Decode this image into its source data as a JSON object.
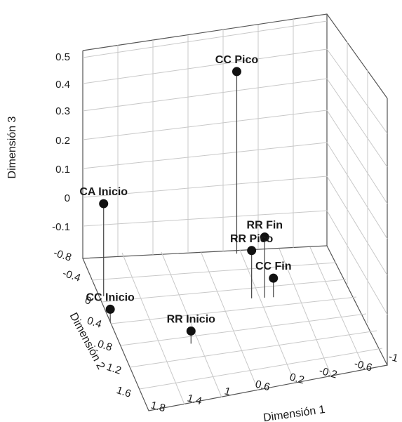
{
  "chart_data": {
    "type": "scatter",
    "projection": "3d",
    "xlabel": "Dimensión 1",
    "ylabel": "Dimensión 2",
    "zlabel": "Dimensión 3",
    "x_ticks": [
      "1.8",
      "1.4",
      "1",
      "0.6",
      "0.2",
      "-0.2",
      "-0.6",
      "-1"
    ],
    "y_ticks": [
      "-0.8",
      "-0.4",
      "0",
      "0.4",
      "0.8",
      "1.2",
      "1.6"
    ],
    "z_ticks": [
      "0.5",
      "0.4",
      "0.3",
      "0.2",
      "0.1",
      "0",
      "-0.1"
    ],
    "xlim": [
      1.8,
      -1
    ],
    "ylim": [
      -0.8,
      1.6
    ],
    "zlim": [
      -0.15,
      0.5
    ],
    "grid": true,
    "points": [
      {
        "label": "CC Pico",
        "x": 0.05,
        "y": -0.75,
        "z": 0.38
      },
      {
        "label": "CA Inicio",
        "x": 1.75,
        "y": -0.2,
        "z": 0.1
      },
      {
        "label": "RR Fin",
        "x": -0.05,
        "y": -0.05,
        "z": 0.0
      },
      {
        "label": "RR Pico",
        "x": 0.1,
        "y": -0.05,
        "z": -0.04
      },
      {
        "label": "CC Fin",
        "x": -0.15,
        "y": -0.05,
        "z": -0.13
      },
      {
        "label": "CC Inicio",
        "x": 1.8,
        "y": 0.2,
        "z": -0.15
      },
      {
        "label": "RR Inicio",
        "x": 1.0,
        "y": 0.6,
        "z": -0.15
      }
    ]
  }
}
